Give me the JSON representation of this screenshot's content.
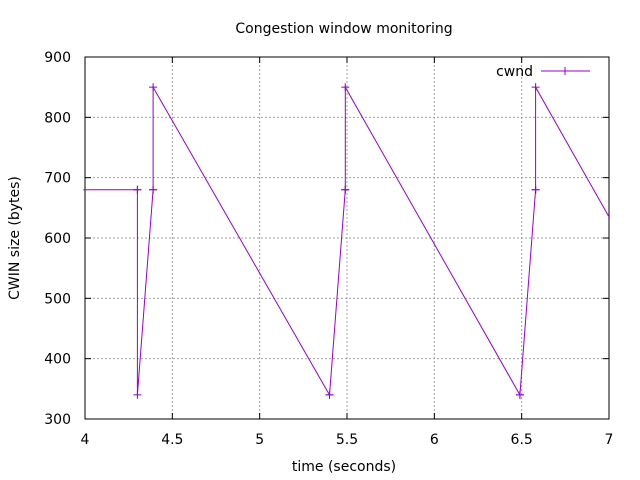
{
  "chart_data": {
    "type": "line",
    "title": "Congestion window monitoring",
    "xlabel": "time (seconds)",
    "ylabel": "CWIN size (bytes)",
    "xlim": [
      4,
      7
    ],
    "ylim": [
      300,
      900
    ],
    "xticks": [
      4,
      4.5,
      5,
      5.5,
      6,
      6.5,
      7
    ],
    "xtick_labels": [
      "4",
      "4.5",
      "5",
      "5.5",
      "6",
      "6.5",
      "7"
    ],
    "yticks": [
      300,
      400,
      500,
      600,
      700,
      800,
      900
    ],
    "ytick_labels": [
      "300",
      "400",
      "500",
      "600",
      "700",
      "800",
      "900"
    ],
    "grid": true,
    "legend_position": "top-right",
    "color": "#9400d3",
    "series": [
      {
        "name": "cwnd",
        "x": [
          3.99,
          4.3,
          4.3,
          4.3,
          4.39,
          4.39,
          4.39,
          5.4,
          5.4,
          5.49,
          5.49,
          5.49,
          6.49,
          6.49,
          6.58,
          6.58,
          6.58,
          7.0
        ],
        "y": [
          680,
          680,
          680,
          340,
          680,
          680,
          850,
          340,
          340,
          680,
          680,
          850,
          340,
          340,
          680,
          680,
          850,
          635
        ],
        "markers": [
          false,
          true,
          true,
          true,
          true,
          true,
          true,
          true,
          true,
          true,
          true,
          true,
          true,
          true,
          true,
          true,
          true,
          false
        ]
      }
    ]
  }
}
